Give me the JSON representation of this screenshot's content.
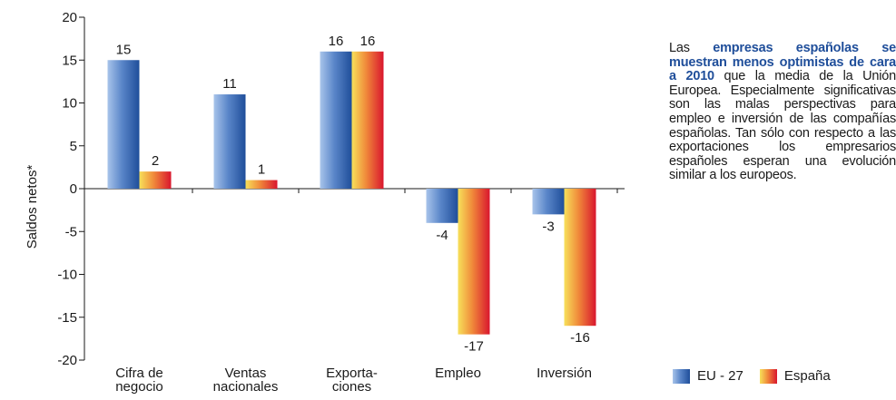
{
  "chart_data": {
    "type": "bar",
    "categories": [
      [
        "Cifra de",
        "negocio"
      ],
      [
        "Ventas",
        "nacionales"
      ],
      [
        "Exporta-",
        "ciones"
      ],
      [
        "Empleo"
      ],
      [
        "Inversión"
      ]
    ],
    "series": [
      {
        "name": "EU - 27",
        "values": [
          15,
          11,
          16,
          -4,
          -3
        ],
        "labels": [
          "15",
          "11",
          "16",
          "-4",
          "-3"
        ]
      },
      {
        "name": "España",
        "values": [
          2,
          1,
          16,
          -17,
          -16
        ],
        "labels": [
          "2",
          "1",
          "16",
          "-17",
          "-16"
        ]
      }
    ],
    "ylabel": "Saldos netos*",
    "ylim": [
      -20,
      20
    ],
    "yticks": [
      20,
      15,
      10,
      5,
      0,
      -5,
      -10,
      -15,
      -20
    ],
    "ytick_labels": [
      "20",
      "15",
      "10",
      "5",
      "0",
      "-5",
      "-10",
      "-15",
      "-20"
    ],
    "grid": false,
    "legend_position": "bottom-right"
  },
  "colors": {
    "eu": [
      "#a8c4ea",
      "#5a86c9",
      "#1f4e9a"
    ],
    "es": [
      "#f7e05a",
      "#f08a3a",
      "#d9162e"
    ]
  },
  "side_text": {
    "p1": "Las ",
    "h1": "empresas españolas se muestran menos optimistas de cara a 2010",
    "p2": " que la media de la Unión Europea. Especialmente significativas son las malas perspectivas para empleo e inversión de las compañías españolas. Tan sólo con respecto a las exportaciones los empresarios españoles esperan una evolución similar a los europeos."
  },
  "legend": {
    "eu_label": "EU - 27",
    "es_label": "España"
  }
}
